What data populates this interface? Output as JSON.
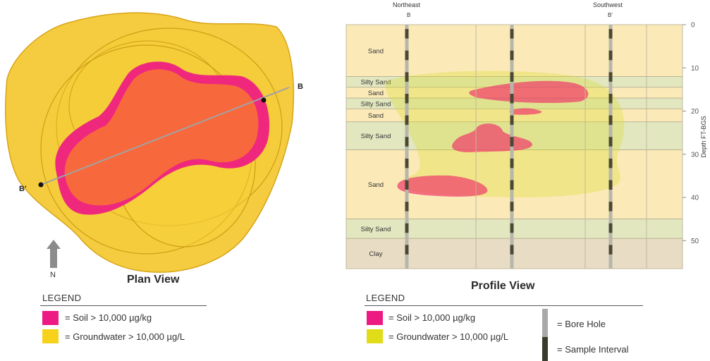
{
  "plan": {
    "title": "Plan View",
    "north_label": "N",
    "section_start_label": "B",
    "section_end_label": "B'",
    "legend": {
      "heading": "LEGEND",
      "items": [
        {
          "color": "#ee1a84",
          "label": "= Soil > 10,000  µg/kg"
        },
        {
          "color": "#f7d21d",
          "label": "= Groundwater > 10,000  µg/L"
        }
      ]
    }
  },
  "profile": {
    "title": "Profile View",
    "header_left": "Northeast",
    "header_left_sub": "B",
    "header_right": "Southwest",
    "header_right_sub": "B'",
    "axis_label": "Depth FT-BGS",
    "depth_ticks": [
      "0",
      "10",
      "20",
      "30",
      "40",
      "50"
    ],
    "layers": [
      {
        "name": "Sand",
        "top": 0,
        "bottom": 12,
        "color": "#fbeab8"
      },
      {
        "name": "Silty Sand",
        "top": 12,
        "bottom": 14.5,
        "color": "#e2e7c0"
      },
      {
        "name": "Sand",
        "top": 14.5,
        "bottom": 17,
        "color": "#fbeab8"
      },
      {
        "name": "Silty Sand",
        "top": 17,
        "bottom": 19.5,
        "color": "#e2e7c0"
      },
      {
        "name": "Sand",
        "top": 19.5,
        "bottom": 22.5,
        "color": "#fbeab8"
      },
      {
        "name": "Silty Sand",
        "top": 22.5,
        "bottom": 29,
        "color": "#e2e7c0"
      },
      {
        "name": "Sand",
        "top": 29,
        "bottom": 45,
        "color": "#fbeab8"
      },
      {
        "name": "Silty Sand",
        "top": 45,
        "bottom": 49.5,
        "color": "#e2e7c0"
      },
      {
        "name": "Clay",
        "top": 49.5,
        "bottom": 56.5,
        "color": "#e8dcc4"
      }
    ],
    "legend": {
      "heading": "LEGEND",
      "items": [
        {
          "color": "#ee1a84",
          "label": "= Soil > 10,000  µg/kg"
        },
        {
          "color": "#e0dc18",
          "label": "= Groundwater > 10,000  µg/L"
        }
      ],
      "bore_hole_label": "= Bore Hole",
      "sample_interval_label": "= Sample Interval"
    }
  }
}
